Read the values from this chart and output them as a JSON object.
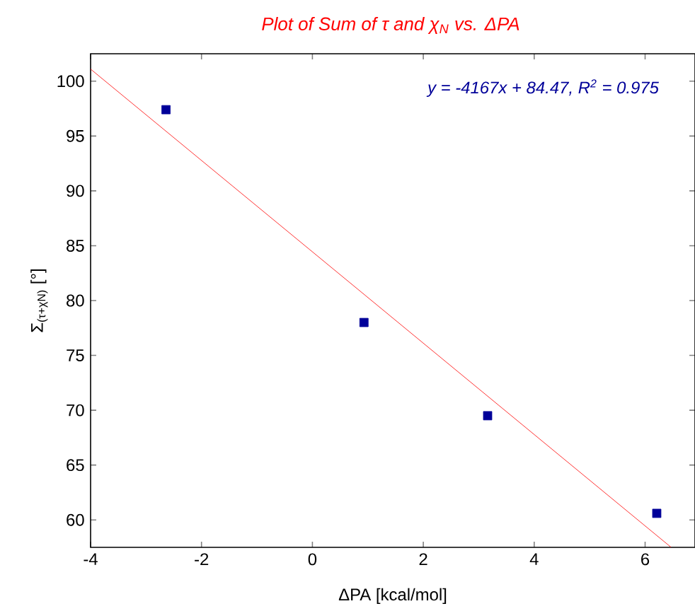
{
  "chart_data": {
    "type": "scatter",
    "title": "Plot of Sum of τ and χ$_{N}$ vs. ΔPA",
    "xlabel": "ΔPA [kcal/mol]",
    "ylabel": "Σ$_{(τ+χN)}$ [°]",
    "annotations": [
      "y = -4167x + 84.47, R$^{2}$ = 0.975"
    ],
    "x": [
      -2.64,
      0.93,
      3.16,
      6.21
    ],
    "series": [
      {
        "color": "#000099",
        "values": [
          97.4,
          78.0,
          69.5,
          60.6
        ],
        "marker": "square"
      },
      {
        "type": "line",
        "color": "#ff0000",
        "x": [
          -4,
          6.47
        ],
        "values": [
          101.1,
          57.5
        ],
        "marker": "none",
        "line_style": "solid"
      }
    ],
    "xlim": [
      -4,
      6.9
    ],
    "ylim": [
      57.5,
      102.5
    ],
    "xticks": [
      -4,
      -2,
      0,
      2,
      4,
      6
    ],
    "yticks": [
      60,
      65,
      70,
      75,
      80,
      85,
      90,
      95,
      100
    ],
    "grid": false
  }
}
